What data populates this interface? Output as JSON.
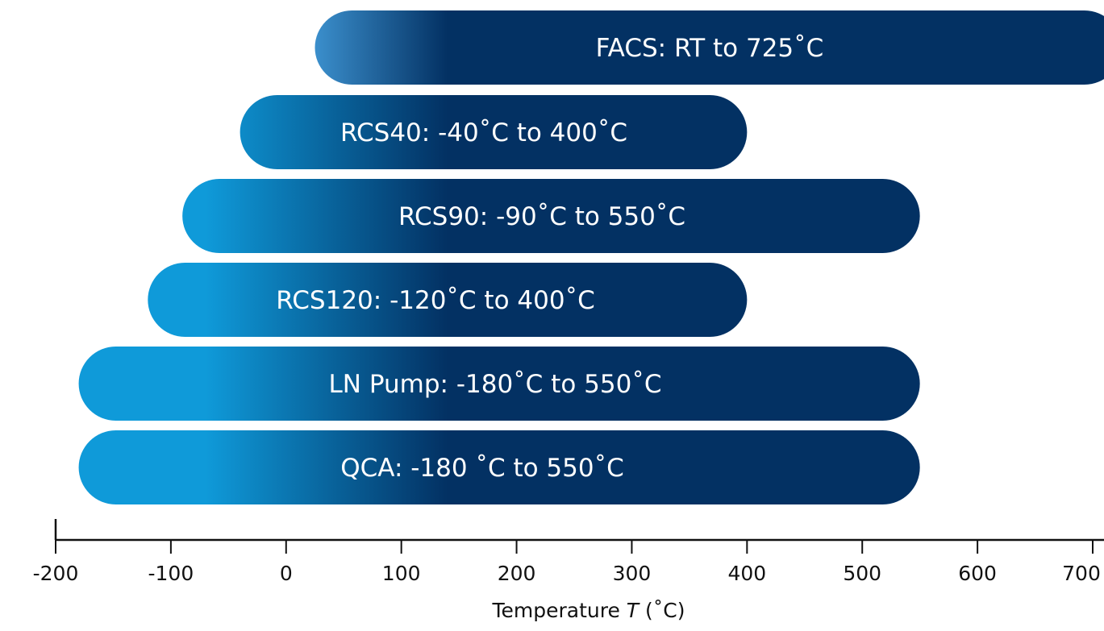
{
  "chart_data": {
    "type": "bar",
    "orientation": "horizontal-range",
    "categories": [
      "FACS",
      "RCS40",
      "RCS90",
      "RCS120",
      "LN Pump",
      "QCA"
    ],
    "bar_labels": [
      "FACS: RT to 725˚C",
      "RCS40: -40˚C to 400˚C",
      "RCS90: -90˚C to 550˚C",
      "RCS120: -120˚C to 400˚C",
      "LN Pump: -180˚C to 550˚C",
      "QCA: -180 ˚C  to 550˚C"
    ],
    "ranges": [
      [
        25,
        725
      ],
      [
        -40,
        400
      ],
      [
        -90,
        550
      ],
      [
        -120,
        400
      ],
      [
        -180,
        550
      ],
      [
        -180,
        550
      ]
    ],
    "xlabel_prefix": "Temperature ",
    "xlabel_var": "T",
    "xlabel_suffix": " (˚C)",
    "xlim": [
      -200,
      725
    ],
    "xticks": [
      -200,
      -100,
      0,
      100,
      200,
      300,
      400,
      500,
      600,
      700
    ],
    "xtick_labels": [
      "-200",
      "-100",
      "0",
      "100",
      "200",
      "300",
      "400",
      "500",
      "600",
      "700"
    ],
    "grid": false,
    "legend": "none"
  },
  "colors": {
    "light_blue": "#0f9ad9",
    "dark_navy": "#033163",
    "axis": "#111111"
  }
}
